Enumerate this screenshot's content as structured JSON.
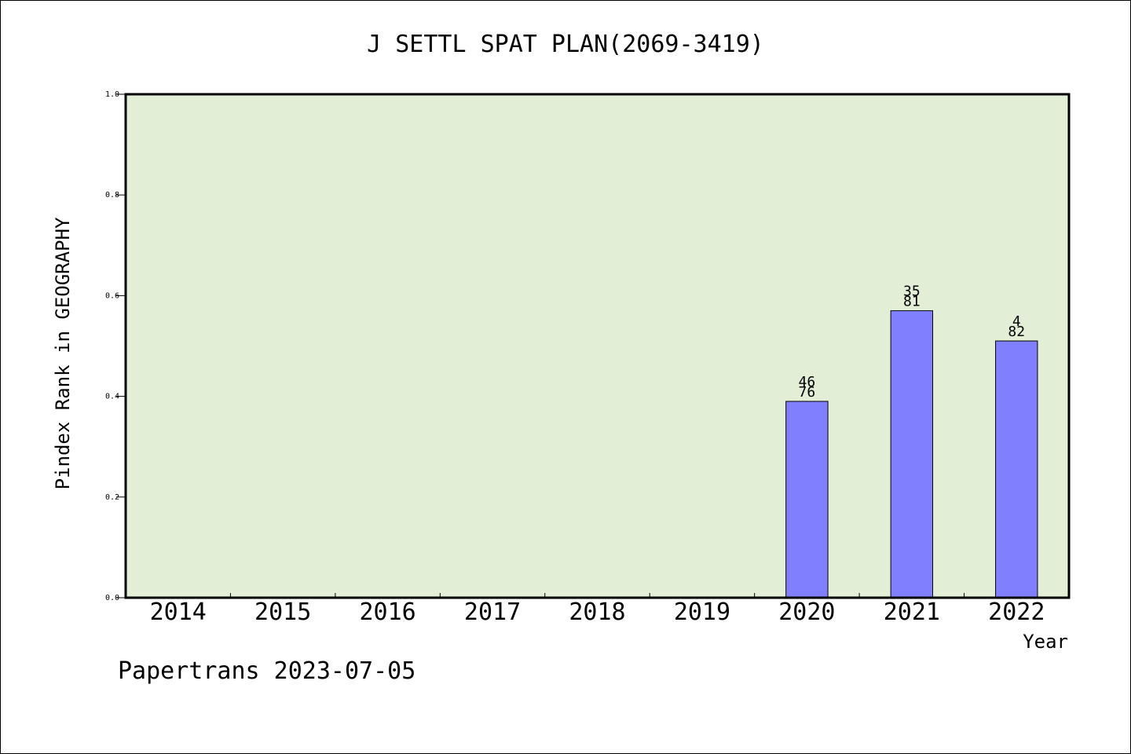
{
  "chart_data": {
    "type": "bar",
    "title": "J SETTL SPAT PLAN(2069-3419)",
    "xlabel": "Year",
    "ylabel": "Pindex Rank in GEOGRAPHY",
    "categories": [
      "2014",
      "2015",
      "2016",
      "2017",
      "2018",
      "2019",
      "2020",
      "2021",
      "2022"
    ],
    "values": [
      null,
      null,
      null,
      null,
      null,
      null,
      0.39,
      0.57,
      0.51
    ],
    "bar_labels": [
      null,
      null,
      null,
      null,
      null,
      null,
      [
        "46",
        "76"
      ],
      [
        "35",
        "81"
      ],
      [
        "4",
        "82"
      ]
    ],
    "ylim": [
      0,
      1.0
    ],
    "yticks": [
      "0.0",
      "0.2",
      "0.4",
      "0.6",
      "0.8",
      "1.0"
    ],
    "grid": false,
    "colors": {
      "plot_background": "#e2efd6",
      "bar": "#8080ff",
      "frame": "#000000"
    }
  },
  "footer": "Papertrans 2023-07-05"
}
